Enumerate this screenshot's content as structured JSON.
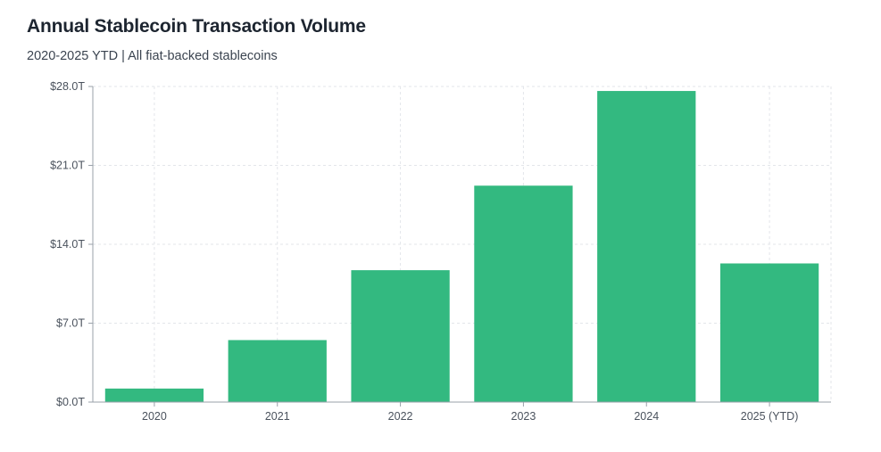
{
  "header": {
    "title": "Annual Stablecoin Transaction Volume",
    "subtitle": "2020-2025 YTD | All fiat-backed stablecoins"
  },
  "colors": {
    "bar": "#33b980",
    "grid": "#e3e6ea",
    "axis": "#9aa1aa",
    "tick_text": "#4a525d"
  },
  "chart_data": {
    "type": "bar",
    "title": "Annual Stablecoin Transaction Volume",
    "subtitle": "2020-2025 YTD | All fiat-backed stablecoins",
    "xlabel": "",
    "ylabel": "",
    "categories": [
      "2020",
      "2021",
      "2022",
      "2023",
      "2024",
      "2025 (YTD)"
    ],
    "values": [
      1.2,
      5.5,
      11.7,
      19.2,
      27.6,
      12.3
    ],
    "unit": "T",
    "ylim": [
      0,
      28
    ],
    "yticks": [
      0,
      7,
      14,
      21,
      28
    ],
    "ytick_labels": [
      "$0.0T",
      "$7.0T",
      "$14.0T",
      "$21.0T",
      "$28.0T"
    ],
    "grid": true,
    "legend": "none"
  }
}
